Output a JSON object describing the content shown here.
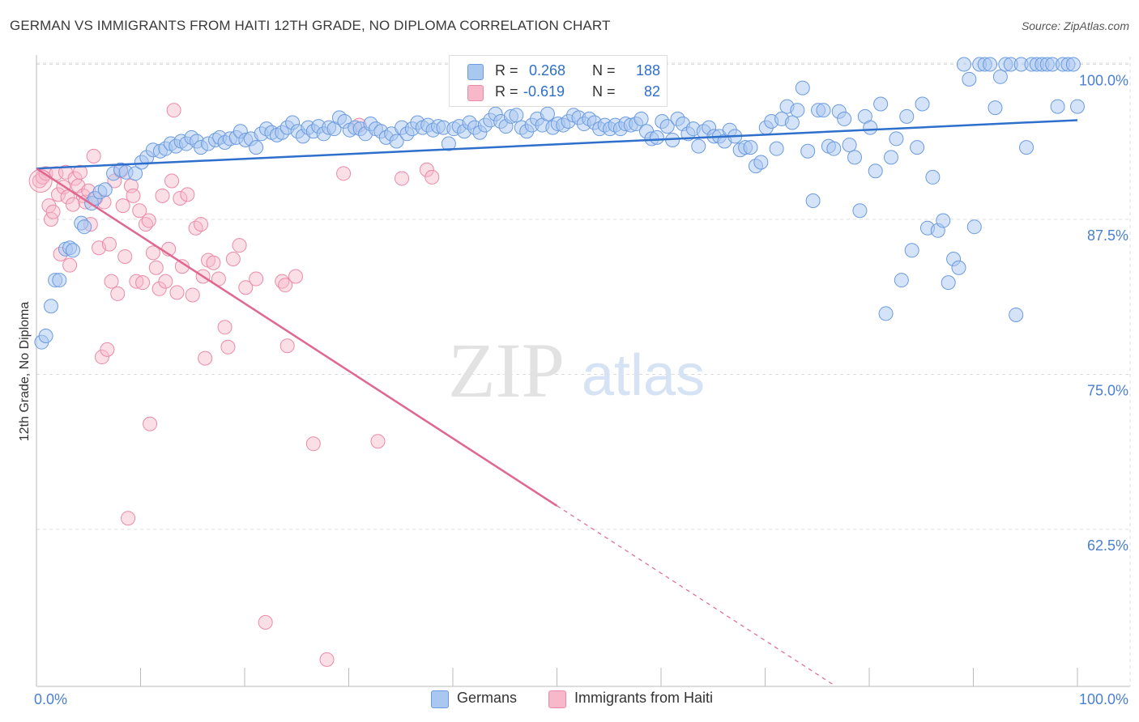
{
  "title": "GERMAN VS IMMIGRANTS FROM HAITI 12TH GRADE, NO DIPLOMA CORRELATION CHART",
  "source": "Source: ZipAtlas.com",
  "watermark": {
    "zip": "ZIP",
    "atlas": "atlas"
  },
  "stats": {
    "germans": {
      "r_label": "R =",
      "r_value": "0.268",
      "n_label": "N =",
      "n_value": "188"
    },
    "haiti": {
      "r_label": "R =",
      "r_value": "-0.619",
      "n_label": "N =",
      "n_value": "82"
    }
  },
  "legend": {
    "germans": "Germans",
    "haiti": "Immigrants from Haiti"
  },
  "colors": {
    "germans_fill": "#a9c8f0",
    "germans_stroke": "#6b9be0",
    "germans_line": "#2e6fcc",
    "haiti_fill": "#f7b8c9",
    "haiti_stroke": "#ec8aa8",
    "haiti_line": "#e0678f",
    "grid": "#dcdcdc",
    "tick_text": "#4a7fd1"
  },
  "chart_data": {
    "type": "scatter",
    "title": "GERMAN VS IMMIGRANTS FROM HAITI 12TH GRADE, NO DIPLOMA CORRELATION CHART",
    "xlabel": "",
    "ylabel": "12th Grade, No Diploma",
    "xlim": [
      0,
      100
    ],
    "ylim": [
      48,
      101
    ],
    "y_ticks": [
      62.5,
      75.0,
      87.5,
      100.0
    ],
    "y_tick_labels": [
      "62.5%",
      "75.0%",
      "87.5%",
      "100.0%"
    ],
    "x_tick_labels": [
      "0.0%",
      "100.0%"
    ],
    "grid": true,
    "series": [
      {
        "name": "Germans",
        "trend": {
          "x": [
            0,
            100
          ],
          "y": [
            91.6,
            95.5
          ],
          "solid_to": 100
        },
        "points": [
          [
            0.5,
            77.6
          ],
          [
            0.9,
            78.1
          ],
          [
            1.4,
            80.5
          ],
          [
            1.8,
            82.6
          ],
          [
            2.2,
            82.6
          ],
          [
            2.8,
            85.1
          ],
          [
            3.2,
            85.2
          ],
          [
            3.5,
            85.0
          ],
          [
            4.3,
            87.2
          ],
          [
            4.6,
            86.9
          ],
          [
            5.3,
            88.8
          ],
          [
            5.6,
            89.2
          ],
          [
            6.1,
            89.7
          ],
          [
            6.6,
            89.9
          ],
          [
            7.4,
            91.2
          ],
          [
            8.1,
            91.5
          ],
          [
            8.6,
            91.3
          ],
          [
            9.5,
            91.2
          ],
          [
            10.1,
            92.1
          ],
          [
            10.6,
            92.5
          ],
          [
            11.2,
            93.1
          ],
          [
            11.9,
            93.0
          ],
          [
            12.4,
            93.2
          ],
          [
            12.9,
            93.6
          ],
          [
            13.4,
            93.4
          ],
          [
            13.9,
            93.8
          ],
          [
            14.4,
            93.6
          ],
          [
            14.9,
            94.1
          ],
          [
            15.4,
            93.8
          ],
          [
            15.8,
            93.3
          ],
          [
            16.5,
            93.6
          ],
          [
            17.2,
            93.9
          ],
          [
            17.6,
            94.1
          ],
          [
            18.1,
            93.7
          ],
          [
            18.6,
            94.0
          ],
          [
            19.2,
            94.1
          ],
          [
            19.6,
            94.6
          ],
          [
            20.1,
            93.9
          ],
          [
            20.6,
            94.0
          ],
          [
            21.1,
            93.3
          ],
          [
            21.6,
            94.4
          ],
          [
            22.1,
            94.8
          ],
          [
            22.6,
            94.5
          ],
          [
            23.1,
            94.3
          ],
          [
            23.6,
            94.5
          ],
          [
            24.1,
            94.9
          ],
          [
            24.6,
            95.3
          ],
          [
            25.1,
            94.6
          ],
          [
            25.6,
            94.2
          ],
          [
            26.1,
            94.9
          ],
          [
            26.6,
            94.6
          ],
          [
            27.1,
            95.0
          ],
          [
            27.6,
            94.4
          ],
          [
            28.1,
            94.9
          ],
          [
            28.6,
            94.8
          ],
          [
            29.1,
            95.7
          ],
          [
            29.6,
            95.4
          ],
          [
            30.1,
            94.7
          ],
          [
            30.6,
            94.9
          ],
          [
            31.1,
            94.8
          ],
          [
            31.6,
            94.4
          ],
          [
            32.1,
            95.2
          ],
          [
            32.6,
            94.8
          ],
          [
            33.1,
            94.6
          ],
          [
            33.6,
            94.1
          ],
          [
            34.1,
            94.4
          ],
          [
            34.6,
            93.8
          ],
          [
            35.1,
            94.9
          ],
          [
            35.6,
            94.4
          ],
          [
            36.1,
            94.8
          ],
          [
            36.6,
            95.3
          ],
          [
            37.1,
            94.9
          ],
          [
            37.6,
            95.1
          ],
          [
            38.1,
            94.7
          ],
          [
            38.6,
            95.0
          ],
          [
            39.1,
            94.9
          ],
          [
            39.6,
            93.6
          ],
          [
            40.1,
            94.8
          ],
          [
            40.6,
            95.0
          ],
          [
            41.1,
            94.6
          ],
          [
            41.6,
            95.3
          ],
          [
            42.1,
            94.9
          ],
          [
            42.6,
            94.5
          ],
          [
            43.1,
            95.1
          ],
          [
            43.6,
            95.5
          ],
          [
            44.1,
            96.0
          ],
          [
            44.6,
            95.4
          ],
          [
            45.1,
            95.0
          ],
          [
            45.6,
            95.8
          ],
          [
            46.1,
            95.9
          ],
          [
            46.6,
            94.9
          ],
          [
            47.1,
            94.6
          ],
          [
            47.6,
            95.1
          ],
          [
            48.1,
            95.6
          ],
          [
            48.6,
            95.1
          ],
          [
            49.1,
            96.0
          ],
          [
            49.6,
            94.9
          ],
          [
            50.1,
            95.2
          ],
          [
            50.6,
            95.1
          ],
          [
            51.1,
            95.4
          ],
          [
            51.6,
            95.9
          ],
          [
            52.1,
            95.7
          ],
          [
            52.6,
            95.2
          ],
          [
            53.1,
            95.6
          ],
          [
            53.6,
            95.3
          ],
          [
            54.1,
            94.8
          ],
          [
            54.6,
            95.1
          ],
          [
            55.1,
            94.8
          ],
          [
            55.6,
            95.1
          ],
          [
            56.1,
            94.8
          ],
          [
            56.6,
            95.2
          ],
          [
            57.1,
            95.1
          ],
          [
            57.6,
            95.2
          ],
          [
            58.1,
            95.6
          ],
          [
            58.6,
            94.6
          ],
          [
            59.1,
            94.0
          ],
          [
            59.6,
            94.1
          ],
          [
            60.1,
            95.4
          ],
          [
            60.6,
            95.0
          ],
          [
            61.1,
            93.9
          ],
          [
            61.6,
            95.6
          ],
          [
            62.1,
            95.2
          ],
          [
            62.6,
            94.4
          ],
          [
            63.1,
            94.8
          ],
          [
            63.6,
            93.4
          ],
          [
            64.1,
            94.6
          ],
          [
            64.6,
            94.9
          ],
          [
            65.1,
            94.2
          ],
          [
            65.6,
            94.2
          ],
          [
            66.1,
            93.8
          ],
          [
            66.6,
            94.7
          ],
          [
            67.1,
            94.2
          ],
          [
            67.6,
            93.1
          ],
          [
            68.1,
            93.3
          ],
          [
            68.6,
            93.3
          ],
          [
            69.1,
            91.8
          ],
          [
            69.6,
            92.1
          ],
          [
            70.1,
            94.9
          ],
          [
            70.6,
            95.4
          ],
          [
            71.1,
            93.2
          ],
          [
            71.6,
            95.6
          ],
          [
            72.1,
            96.6
          ],
          [
            72.6,
            95.3
          ],
          [
            73.1,
            96.3
          ],
          [
            73.6,
            98.1
          ],
          [
            74.1,
            93.0
          ],
          [
            74.6,
            89.0
          ],
          [
            75.1,
            96.3
          ],
          [
            75.6,
            96.3
          ],
          [
            76.1,
            93.4
          ],
          [
            76.6,
            93.2
          ],
          [
            77.1,
            96.2
          ],
          [
            77.6,
            95.6
          ],
          [
            78.1,
            93.5
          ],
          [
            78.6,
            92.5
          ],
          [
            79.1,
            88.2
          ],
          [
            79.6,
            95.8
          ],
          [
            80.1,
            94.9
          ],
          [
            80.6,
            91.4
          ],
          [
            81.1,
            96.8
          ],
          [
            81.6,
            79.9
          ],
          [
            82.1,
            92.5
          ],
          [
            82.6,
            94.0
          ],
          [
            83.1,
            82.6
          ],
          [
            83.6,
            95.8
          ],
          [
            84.1,
            85.0
          ],
          [
            84.6,
            93.3
          ],
          [
            85.1,
            96.8
          ],
          [
            85.6,
            86.8
          ],
          [
            86.1,
            90.9
          ],
          [
            86.6,
            86.6
          ],
          [
            87.1,
            87.4
          ],
          [
            87.6,
            82.4
          ],
          [
            88.1,
            84.3
          ],
          [
            88.6,
            83.6
          ],
          [
            89.1,
            100.0
          ],
          [
            89.6,
            98.8
          ],
          [
            90.1,
            86.9
          ],
          [
            90.6,
            100.0
          ],
          [
            91.1,
            100.0
          ],
          [
            91.6,
            100.0
          ],
          [
            92.1,
            96.5
          ],
          [
            92.6,
            99.0
          ],
          [
            93.1,
            100.0
          ],
          [
            93.6,
            100.0
          ],
          [
            94.1,
            79.8
          ],
          [
            94.6,
            100.0
          ],
          [
            95.1,
            93.3
          ],
          [
            95.6,
            100.0
          ],
          [
            96.1,
            100.0
          ],
          [
            96.6,
            100.0
          ],
          [
            97.1,
            100.0
          ],
          [
            97.6,
            100.0
          ],
          [
            98.1,
            96.6
          ],
          [
            98.6,
            100.0
          ],
          [
            99.1,
            100.0
          ],
          [
            99.6,
            100.0
          ],
          [
            100.0,
            96.6
          ]
        ]
      },
      {
        "name": "Immigrants from Haiti",
        "trend": {
          "x": [
            0,
            50,
            76.5
          ],
          "y": [
            91.6,
            64.4,
            50.0
          ],
          "solid_to": 50
        },
        "points": [
          [
            0.3,
            90.6
          ],
          [
            0.6,
            90.9
          ],
          [
            0.9,
            91.2
          ],
          [
            1.2,
            88.6
          ],
          [
            1.4,
            87.5
          ],
          [
            1.6,
            88.1
          ],
          [
            1.9,
            91.2
          ],
          [
            2.1,
            89.5
          ],
          [
            2.3,
            84.7
          ],
          [
            2.6,
            90.1
          ],
          [
            2.8,
            91.3
          ],
          [
            3.0,
            89.3
          ],
          [
            3.2,
            83.8
          ],
          [
            3.5,
            88.7
          ],
          [
            3.7,
            90.8
          ],
          [
            4.0,
            90.2
          ],
          [
            4.2,
            91.3
          ],
          [
            4.5,
            89.4
          ],
          [
            4.7,
            88.9
          ],
          [
            5.0,
            89.8
          ],
          [
            5.2,
            87.1
          ],
          [
            5.5,
            92.6
          ],
          [
            5.7,
            89.2
          ],
          [
            6.0,
            85.2
          ],
          [
            6.3,
            76.4
          ],
          [
            6.5,
            88.9
          ],
          [
            6.8,
            77.0
          ],
          [
            7.0,
            85.5
          ],
          [
            7.2,
            82.5
          ],
          [
            7.5,
            90.6
          ],
          [
            7.8,
            81.5
          ],
          [
            8.1,
            91.4
          ],
          [
            8.3,
            88.6
          ],
          [
            8.5,
            84.5
          ],
          [
            8.8,
            63.4
          ],
          [
            9.1,
            90.2
          ],
          [
            9.3,
            89.4
          ],
          [
            9.6,
            82.5
          ],
          [
            9.9,
            88.2
          ],
          [
            10.2,
            82.4
          ],
          [
            10.5,
            87.1
          ],
          [
            10.8,
            87.4
          ],
          [
            10.9,
            71.0
          ],
          [
            11.2,
            84.8
          ],
          [
            11.5,
            83.6
          ],
          [
            11.8,
            81.9
          ],
          [
            12.1,
            89.4
          ],
          [
            12.4,
            82.5
          ],
          [
            12.7,
            85.1
          ],
          [
            13.0,
            90.6
          ],
          [
            13.2,
            96.3
          ],
          [
            13.5,
            81.6
          ],
          [
            13.8,
            89.2
          ],
          [
            14.0,
            83.7
          ],
          [
            14.5,
            89.5
          ],
          [
            15.0,
            81.4
          ],
          [
            15.3,
            86.8
          ],
          [
            15.8,
            87.1
          ],
          [
            16.0,
            82.9
          ],
          [
            16.2,
            76.3
          ],
          [
            16.5,
            84.2
          ],
          [
            17.0,
            84.0
          ],
          [
            17.5,
            82.7
          ],
          [
            18.1,
            78.8
          ],
          [
            18.4,
            77.2
          ],
          [
            18.9,
            84.3
          ],
          [
            19.5,
            85.4
          ],
          [
            20.1,
            82.0
          ],
          [
            21.1,
            82.7
          ],
          [
            22.0,
            55.0
          ],
          [
            23.6,
            82.5
          ],
          [
            23.9,
            82.2
          ],
          [
            24.1,
            77.3
          ],
          [
            24.9,
            82.9
          ],
          [
            26.6,
            69.4
          ],
          [
            27.9,
            52.0
          ],
          [
            32.8,
            69.6
          ],
          [
            29.5,
            91.2
          ],
          [
            31.0,
            95.1
          ],
          [
            35.1,
            90.8
          ],
          [
            37.5,
            91.5
          ],
          [
            38.0,
            90.9
          ]
        ]
      }
    ]
  }
}
